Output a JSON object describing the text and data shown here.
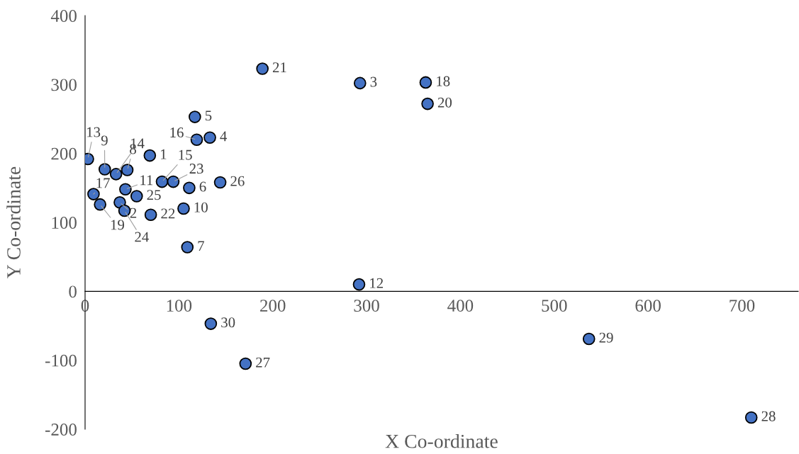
{
  "chart_data": {
    "type": "scatter",
    "xlabel": "X Co-ordinate",
    "ylabel": "Y Co-ordinate",
    "x": [
      69,
      37,
      293,
      133,
      117,
      111,
      109,
      45,
      21,
      105,
      43,
      292,
      3,
      33,
      82,
      119,
      9,
      363,
      16,
      365,
      189,
      70,
      94,
      42,
      55,
      144,
      171,
      710,
      537,
      134
    ],
    "values": [
      197,
      129,
      302,
      223,
      253,
      150,
      64,
      176,
      177,
      120,
      148,
      10,
      192,
      170,
      159,
      220,
      141,
      303,
      126,
      272,
      323,
      111,
      159,
      117,
      138,
      158,
      -105,
      -183,
      -69,
      -47
    ],
    "annotations": [
      {
        "text": "1",
        "x": 69,
        "y": 197
      },
      {
        "text": "2",
        "x": 37,
        "y": 129
      },
      {
        "text": "3",
        "x": 293,
        "y": 302
      },
      {
        "text": "4",
        "x": 133,
        "y": 223
      },
      {
        "text": "5",
        "x": 117,
        "y": 253
      },
      {
        "text": "6",
        "x": 111,
        "y": 150
      },
      {
        "text": "7",
        "x": 109,
        "y": 64
      },
      {
        "text": "8",
        "x": 45,
        "y": 176
      },
      {
        "text": "9",
        "x": 21,
        "y": 177
      },
      {
        "text": "10",
        "x": 105,
        "y": 120
      },
      {
        "text": "11",
        "x": 43,
        "y": 148
      },
      {
        "text": "12",
        "x": 292,
        "y": 10
      },
      {
        "text": "13",
        "x": 3,
        "y": 192
      },
      {
        "text": "14",
        "x": 33,
        "y": 170
      },
      {
        "text": "15",
        "x": 82,
        "y": 159
      },
      {
        "text": "16",
        "x": 119,
        "y": 220
      },
      {
        "text": "17",
        "x": 9,
        "y": 141
      },
      {
        "text": "18",
        "x": 363,
        "y": 303
      },
      {
        "text": "19",
        "x": 16,
        "y": 126
      },
      {
        "text": "20",
        "x": 365,
        "y": 272
      },
      {
        "text": "21",
        "x": 189,
        "y": 323
      },
      {
        "text": "22",
        "x": 70,
        "y": 111
      },
      {
        "text": "23",
        "x": 94,
        "y": 159
      },
      {
        "text": "24",
        "x": 42,
        "y": 117
      },
      {
        "text": "25",
        "x": 55,
        "y": 138
      },
      {
        "text": "26",
        "x": 144,
        "y": 158
      },
      {
        "text": "27",
        "x": 171,
        "y": -105
      },
      {
        "text": "28",
        "x": 710,
        "y": -183
      },
      {
        "text": "29",
        "x": 537,
        "y": -69
      },
      {
        "text": "30",
        "x": 134,
        "y": -47
      }
    ],
    "color": "#4472c4",
    "marker": "circle",
    "xlim": [
      0,
      760
    ],
    "ylim": [
      -200,
      400
    ],
    "xticks": [
      0,
      100,
      200,
      300,
      400,
      500,
      600,
      700
    ],
    "yticks": [
      -200,
      -100,
      0,
      100,
      200,
      300,
      400
    ]
  }
}
